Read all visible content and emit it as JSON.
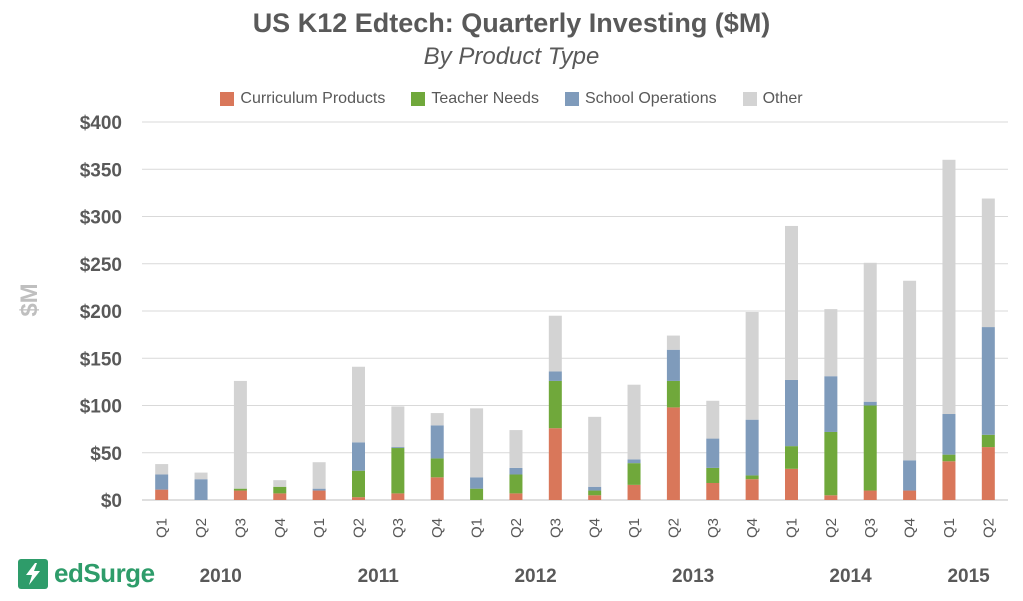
{
  "chart_data": {
    "type": "bar",
    "stacked": true,
    "title": "US K12 Edtech: Quarterly Investing ($M)",
    "subtitle": "By Product Type",
    "ylabel": "$M",
    "ylim": [
      0,
      400
    ],
    "yticks": [
      0,
      50,
      100,
      150,
      200,
      250,
      300,
      350,
      400
    ],
    "ytick_labels": [
      "$0",
      "$50",
      "$100",
      "$150",
      "$200",
      "$250",
      "$300",
      "$350",
      "$400"
    ],
    "grid": true,
    "legend_position": "top",
    "categories": [
      "Q1",
      "Q2",
      "Q3",
      "Q4",
      "Q1",
      "Q2",
      "Q3",
      "Q4",
      "Q1",
      "Q2",
      "Q3",
      "Q4",
      "Q1",
      "Q2",
      "Q3",
      "Q4",
      "Q1",
      "Q2",
      "Q3",
      "Q4",
      "Q1",
      "Q2"
    ],
    "years": [
      {
        "label": "2010",
        "start": 0,
        "end": 3
      },
      {
        "label": "2011",
        "start": 4,
        "end": 7
      },
      {
        "label": "2012",
        "start": 8,
        "end": 11
      },
      {
        "label": "2013",
        "start": 12,
        "end": 15
      },
      {
        "label": "2014",
        "start": 16,
        "end": 19
      },
      {
        "label": "2015",
        "start": 20,
        "end": 21
      }
    ],
    "series": [
      {
        "name": "Curriculum Products",
        "color": "#d9775a",
        "values": [
          11,
          0,
          10,
          7,
          10,
          3,
          7,
          24,
          0,
          7,
          76,
          5,
          16,
          98,
          18,
          22,
          33,
          5,
          10,
          10,
          41,
          56
        ]
      },
      {
        "name": "Teacher Needs",
        "color": "#70a83b",
        "values": [
          0,
          0,
          2,
          7,
          0,
          28,
          48,
          20,
          12,
          20,
          50,
          5,
          23,
          28,
          16,
          4,
          24,
          67,
          90,
          0,
          7,
          13
        ]
      },
      {
        "name": "School Operations",
        "color": "#7f9bbb",
        "values": [
          16,
          22,
          0,
          0,
          2,
          30,
          1,
          35,
          12,
          7,
          10,
          4,
          4,
          33,
          31,
          59,
          70,
          59,
          4,
          32,
          43,
          114
        ]
      },
      {
        "name": "Other",
        "color": "#d3d3d3",
        "values": [
          11,
          7,
          114,
          7,
          28,
          80,
          43,
          13,
          73,
          40,
          59,
          74,
          79,
          15,
          40,
          114,
          163,
          71,
          147,
          190,
          269,
          136
        ]
      }
    ]
  },
  "brand": {
    "name": "edSurge",
    "color": "#2e9c6a",
    "icon": "lightning-bolt-icon"
  }
}
